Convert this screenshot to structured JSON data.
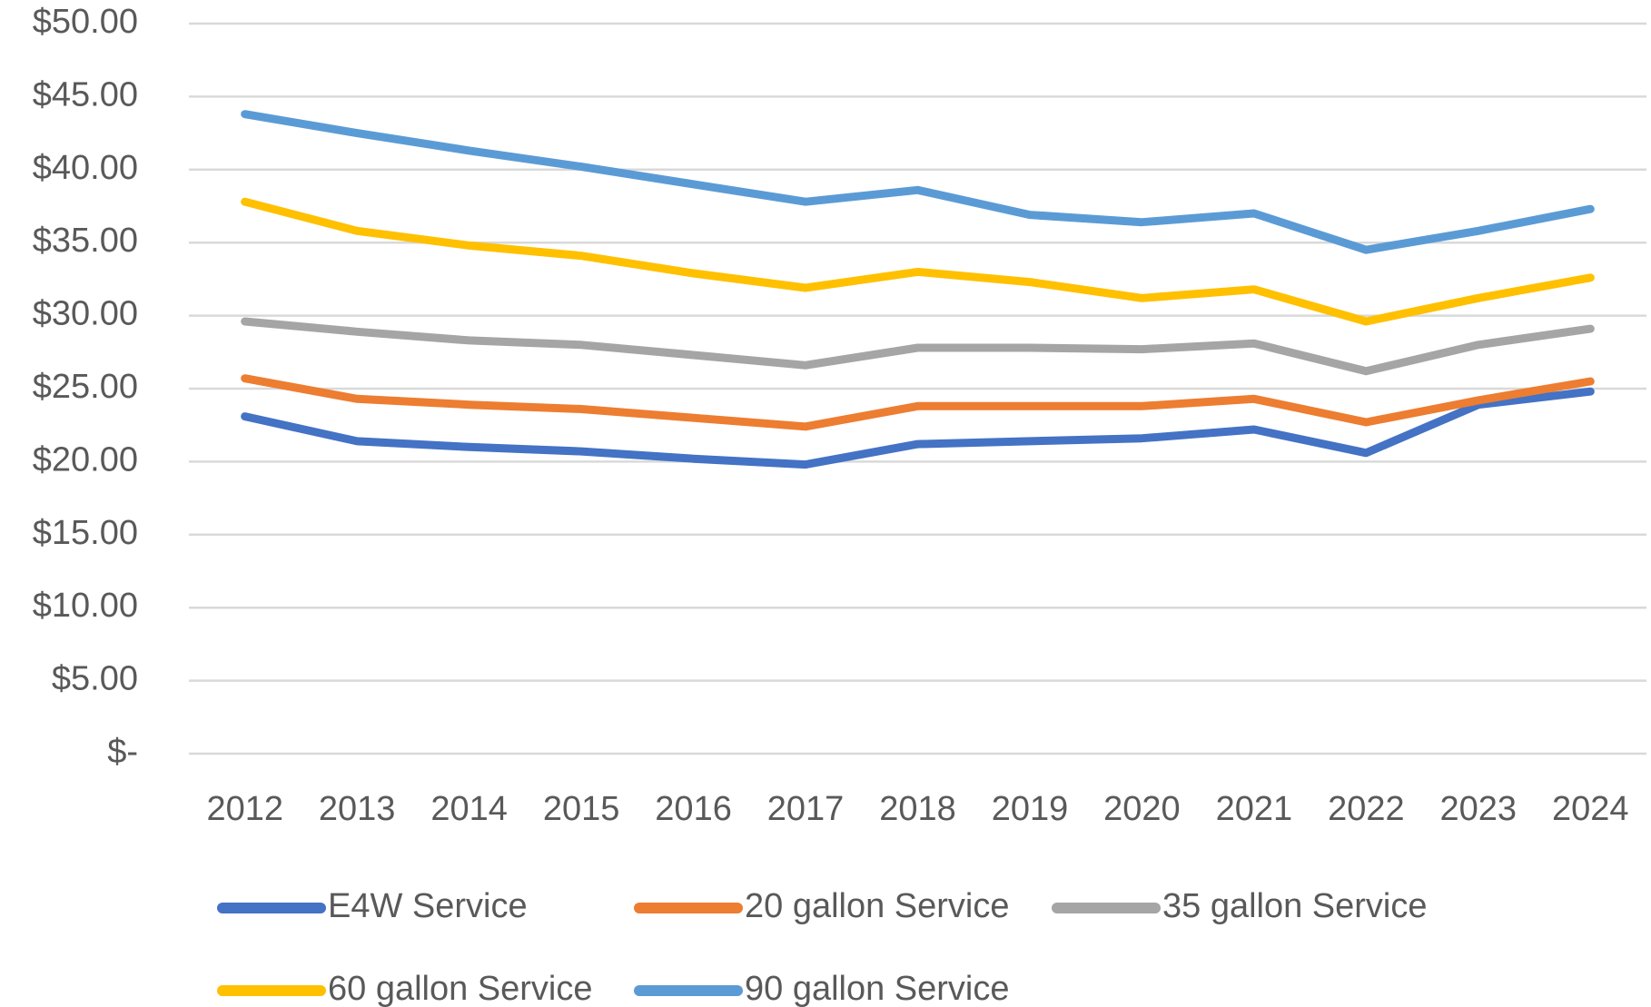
{
  "chart_data": {
    "type": "line",
    "categories": [
      "2012",
      "2013",
      "2014",
      "2015",
      "2016",
      "2017",
      "2018",
      "2019",
      "2020",
      "2021",
      "2022",
      "2023",
      "2024"
    ],
    "series": [
      {
        "name": "E4W Service",
        "color": "#4472c4",
        "values": [
          23.1,
          21.4,
          21.0,
          20.7,
          20.2,
          19.8,
          21.2,
          21.4,
          21.6,
          22.2,
          20.6,
          23.9,
          24.8
        ]
      },
      {
        "name": "20 gallon Service",
        "color": "#ed7d31",
        "values": [
          25.7,
          24.3,
          23.9,
          23.6,
          23.0,
          22.4,
          23.8,
          23.8,
          23.8,
          24.3,
          22.7,
          24.2,
          25.5
        ]
      },
      {
        "name": "35 gallon Service",
        "color": "#a5a5a5",
        "values": [
          29.6,
          28.9,
          28.3,
          28.0,
          27.3,
          26.6,
          27.8,
          27.8,
          27.7,
          28.1,
          26.2,
          28.0,
          29.1
        ]
      },
      {
        "name": "60 gallon Service",
        "color": "#ffc000",
        "values": [
          37.8,
          35.8,
          34.8,
          34.1,
          32.9,
          31.9,
          33.0,
          32.3,
          31.2,
          31.8,
          29.6,
          31.2,
          32.6
        ]
      },
      {
        "name": "90 gallon Service",
        "color": "#5b9bd5",
        "values": [
          43.8,
          42.5,
          41.3,
          40.2,
          39.0,
          37.8,
          38.6,
          36.9,
          36.4,
          37.0,
          34.5,
          35.8,
          37.3
        ]
      }
    ],
    "ylim": [
      0,
      50
    ],
    "yticks": [
      {
        "value": 0,
        "label": "$-"
      },
      {
        "value": 5,
        "label": "$5.00"
      },
      {
        "value": 10,
        "label": "$10.00"
      },
      {
        "value": 15,
        "label": "$15.00"
      },
      {
        "value": 20,
        "label": "$20.00"
      },
      {
        "value": 25,
        "label": "$25.00"
      },
      {
        "value": 30,
        "label": "$30.00"
      },
      {
        "value": 35,
        "label": "$35.00"
      },
      {
        "value": 40,
        "label": "$40.00"
      },
      {
        "value": 45,
        "label": "$45.00"
      },
      {
        "value": 50,
        "label": "$50.00"
      }
    ],
    "grid": true,
    "legend": "bottom"
  }
}
